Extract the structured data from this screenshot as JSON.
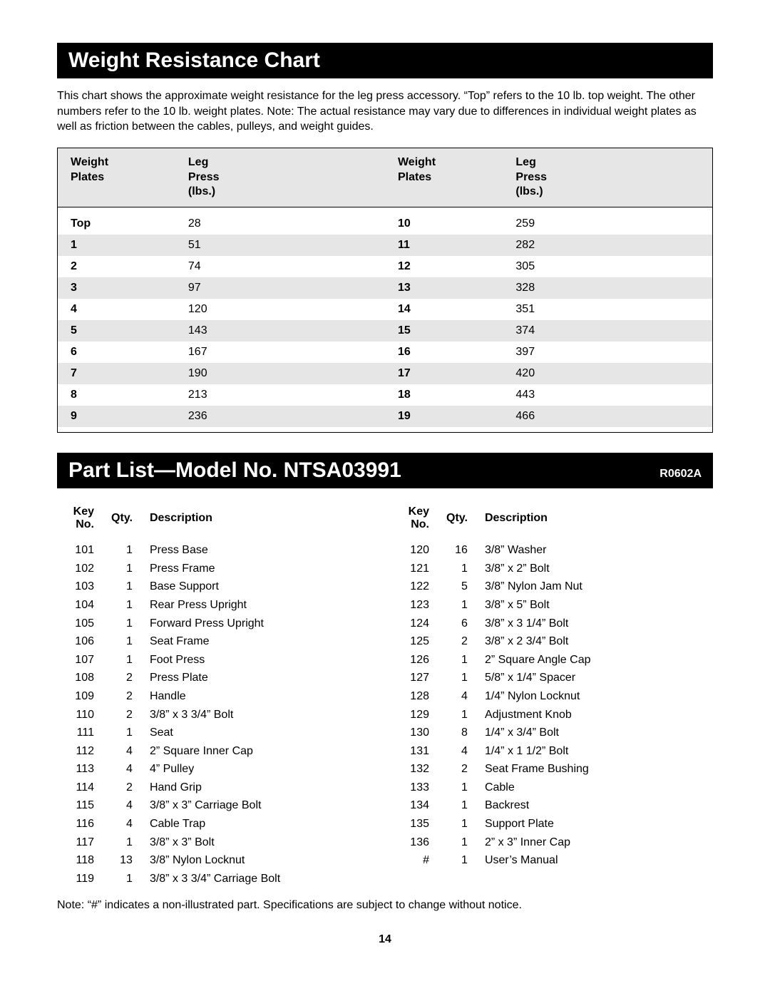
{
  "page_number": "14",
  "section1": {
    "title": "Weight Resistance Chart",
    "intro": "This chart shows the approximate weight resistance for the leg press accessory. “Top” refers to the 10 lb. top weight. The other numbers refer to the 10 lb. weight plates. Note: The actual resistance may vary due to differences in individual weight plates as well as friction between the cables, pulleys, and weight guides.",
    "header_col1a": "Weight",
    "header_col1b": "Plates",
    "header_col2a": "Leg",
    "header_col2b": "Press",
    "header_col2c": "(lbs.)",
    "left_rows": [
      {
        "label": "Top",
        "value": "28"
      },
      {
        "label": "1",
        "value": "51"
      },
      {
        "label": "2",
        "value": "74"
      },
      {
        "label": "3",
        "value": "97"
      },
      {
        "label": "4",
        "value": "120"
      },
      {
        "label": "5",
        "value": "143"
      },
      {
        "label": "6",
        "value": "167"
      },
      {
        "label": "7",
        "value": "190"
      },
      {
        "label": "8",
        "value": "213"
      },
      {
        "label": "9",
        "value": "236"
      }
    ],
    "right_rows": [
      {
        "label": "10",
        "value": "259"
      },
      {
        "label": "11",
        "value": "282"
      },
      {
        "label": "12",
        "value": "305"
      },
      {
        "label": "13",
        "value": "328"
      },
      {
        "label": "14",
        "value": "351"
      },
      {
        "label": "15",
        "value": "374"
      },
      {
        "label": "16",
        "value": "397"
      },
      {
        "label": "17",
        "value": "420"
      },
      {
        "label": "18",
        "value": "443"
      },
      {
        "label": "19",
        "value": "466"
      }
    ],
    "styling": {
      "type": "table",
      "stripe_color": "#e6e6e6",
      "border_color": "#000000",
      "font_size": 16,
      "header_bg": "#e6e6e6",
      "stripe_odd_rows_starting_index": 1
    }
  },
  "section2": {
    "title": "Part List—Model No. NTSA03991",
    "revision": "R0602A",
    "col_headers": {
      "key": "Key No.",
      "qty": "Qty.",
      "desc": "Description"
    },
    "left_parts": [
      {
        "key": "101",
        "qty": "1",
        "desc": "Press Base"
      },
      {
        "key": "102",
        "qty": "1",
        "desc": "Press Frame"
      },
      {
        "key": "103",
        "qty": "1",
        "desc": "Base Support"
      },
      {
        "key": "104",
        "qty": "1",
        "desc": "Rear Press Upright"
      },
      {
        "key": "105",
        "qty": "1",
        "desc": "Forward Press Upright"
      },
      {
        "key": "106",
        "qty": "1",
        "desc": "Seat Frame"
      },
      {
        "key": "107",
        "qty": "1",
        "desc": "Foot Press"
      },
      {
        "key": "108",
        "qty": "2",
        "desc": "Press Plate"
      },
      {
        "key": "109",
        "qty": "2",
        "desc": "Handle"
      },
      {
        "key": "110",
        "qty": "2",
        "desc": "3/8” x 3 3/4” Bolt"
      },
      {
        "key": "111",
        "qty": "1",
        "desc": "Seat"
      },
      {
        "key": "112",
        "qty": "4",
        "desc": "2” Square Inner Cap"
      },
      {
        "key": "113",
        "qty": "4",
        "desc": "4” Pulley"
      },
      {
        "key": "114",
        "qty": "2",
        "desc": "Hand Grip"
      },
      {
        "key": "115",
        "qty": "4",
        "desc": "3/8” x 3” Carriage Bolt"
      },
      {
        "key": "116",
        "qty": "4",
        "desc": "Cable Trap"
      },
      {
        "key": "117",
        "qty": "1",
        "desc": "3/8” x 3” Bolt"
      },
      {
        "key": "118",
        "qty": "13",
        "desc": "3/8” Nylon Locknut"
      },
      {
        "key": "119",
        "qty": "1",
        "desc": "3/8” x 3 3/4” Carriage Bolt"
      }
    ],
    "right_parts": [
      {
        "key": "120",
        "qty": "16",
        "desc": "3/8” Washer"
      },
      {
        "key": "121",
        "qty": "1",
        "desc": "3/8” x 2” Bolt"
      },
      {
        "key": "122",
        "qty": "5",
        "desc": "3/8” Nylon Jam Nut"
      },
      {
        "key": "123",
        "qty": "1",
        "desc": "3/8” x 5” Bolt"
      },
      {
        "key": "124",
        "qty": "6",
        "desc": "3/8” x 3 1/4” Bolt"
      },
      {
        "key": "125",
        "qty": "2",
        "desc": "3/8” x 2 3/4” Bolt"
      },
      {
        "key": "126",
        "qty": "1",
        "desc": "2” Square Angle Cap"
      },
      {
        "key": "127",
        "qty": "1",
        "desc": "5/8” x 1/4” Spacer"
      },
      {
        "key": "128",
        "qty": "4",
        "desc": "1/4” Nylon Locknut"
      },
      {
        "key": "129",
        "qty": "1",
        "desc": "Adjustment Knob"
      },
      {
        "key": "130",
        "qty": "8",
        "desc": "1/4” x 3/4” Bolt"
      },
      {
        "key": "131",
        "qty": "4",
        "desc": "1/4” x 1 1/2” Bolt"
      },
      {
        "key": "132",
        "qty": "2",
        "desc": "Seat Frame Bushing"
      },
      {
        "key": "133",
        "qty": "1",
        "desc": "Cable"
      },
      {
        "key": "134",
        "qty": "1",
        "desc": "Backrest"
      },
      {
        "key": "135",
        "qty": "1",
        "desc": "Support Plate"
      },
      {
        "key": "136",
        "qty": "1",
        "desc": "2” x 3” Inner Cap"
      },
      {
        "key": "#",
        "qty": "1",
        "desc": "User’s Manual"
      }
    ],
    "note": "Note: “#” indicates a non-illustrated part. Specifications are subject to change without notice.",
    "styling": {
      "type": "table",
      "font_size": 16,
      "key_col_align": "right",
      "qty_col_align": "right"
    }
  }
}
